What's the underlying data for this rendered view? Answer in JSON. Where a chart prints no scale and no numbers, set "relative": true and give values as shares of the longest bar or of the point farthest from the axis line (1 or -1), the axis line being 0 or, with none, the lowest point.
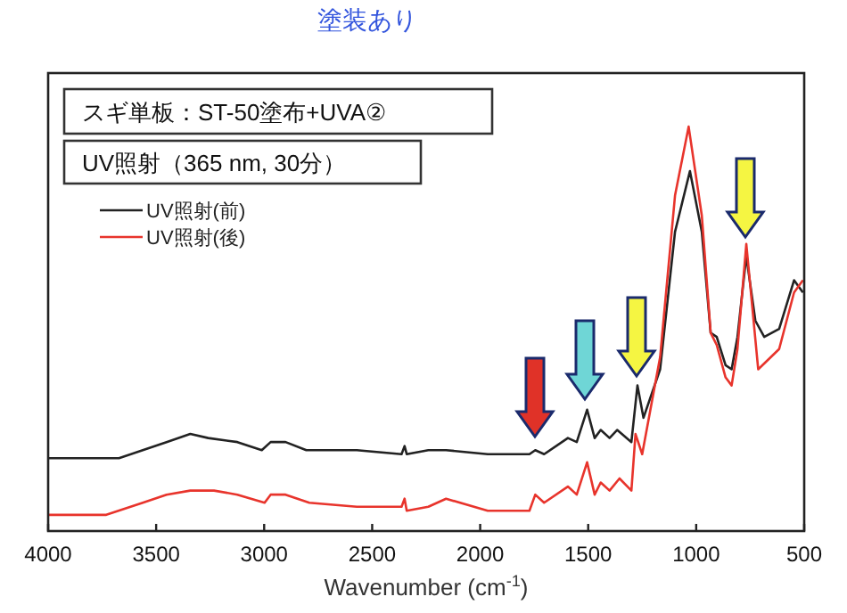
{
  "chart_data": {
    "type": "line",
    "title": "塗装あり",
    "xlabel": "Wavenumber (cm$^{-1}$)",
    "relative": true,
    "xlim": [
      4000,
      500
    ],
    "xticks": [
      4000,
      3500,
      3000,
      2500,
      2000,
      1500,
      1000,
      500
    ],
    "tick_labels": "x",
    "grid": false,
    "legend": "top left",
    "annotations": [
      "スギ単板：ST-50塗布+UVA②",
      "UV照射（365 nm, 30分）"
    ],
    "series": [
      {
        "name": "UV照射(前)",
        "color": "#222222",
        "x": [
          4000,
          3672,
          3562,
          3452,
          3342,
          3259,
          3124,
          3011,
          2970,
          2901,
          2805,
          2571,
          2364,
          2350,
          2340,
          2240,
          2158,
          1965,
          1772,
          1745,
          1704,
          1594,
          1553,
          1505,
          1470,
          1442,
          1401,
          1366,
          1300,
          1272,
          1244,
          1167,
          1098,
          1029,
          974,
          933,
          905,
          864,
          836,
          809,
          768,
          726,
          685,
          616,
          547,
          506
        ],
        "values": [
          0.18,
          0.18,
          0.2,
          0.22,
          0.24,
          0.23,
          0.22,
          0.2,
          0.22,
          0.22,
          0.2,
          0.2,
          0.19,
          0.21,
          0.19,
          0.2,
          0.2,
          0.19,
          0.19,
          0.2,
          0.19,
          0.23,
          0.22,
          0.3,
          0.23,
          0.25,
          0.23,
          0.25,
          0.22,
          0.36,
          0.28,
          0.4,
          0.74,
          0.89,
          0.74,
          0.49,
          0.48,
          0.41,
          0.4,
          0.48,
          0.68,
          0.52,
          0.48,
          0.5,
          0.62,
          0.59
        ]
      },
      {
        "name": "UV照射(後)",
        "color": "#e8342c",
        "x": [
          4000,
          3731,
          3562,
          3452,
          3342,
          3232,
          3124,
          2998,
          2970,
          2901,
          2791,
          2571,
          2364,
          2350,
          2340,
          2240,
          2158,
          1965,
          1772,
          1745,
          1704,
          1594,
          1553,
          1505,
          1470,
          1442,
          1401,
          1355,
          1300,
          1281,
          1250,
          1167,
          1098,
          1035,
          974,
          933,
          905,
          864,
          836,
          809,
          768,
          713,
          616,
          547,
          506
        ],
        "values": [
          0.04,
          0.04,
          0.07,
          0.09,
          0.1,
          0.1,
          0.09,
          0.07,
          0.09,
          0.09,
          0.07,
          0.06,
          0.06,
          0.08,
          0.05,
          0.06,
          0.08,
          0.05,
          0.05,
          0.09,
          0.07,
          0.11,
          0.09,
          0.17,
          0.09,
          0.12,
          0.1,
          0.13,
          0.1,
          0.24,
          0.19,
          0.43,
          0.83,
          1.0,
          0.78,
          0.49,
          0.46,
          0.38,
          0.36,
          0.45,
          0.71,
          0.4,
          0.45,
          0.59,
          0.62
        ]
      }
    ]
  }
}
